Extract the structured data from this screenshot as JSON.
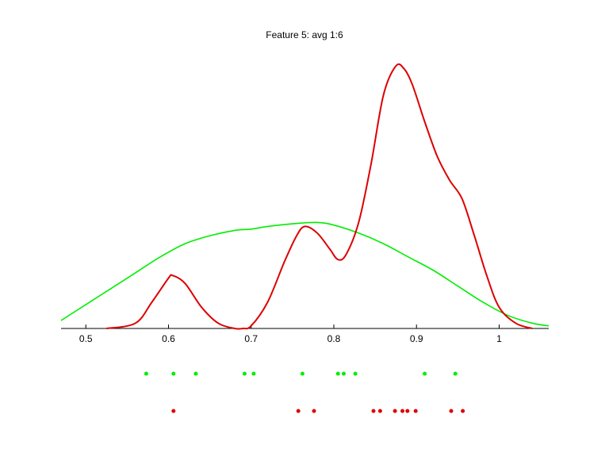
{
  "chart_data": {
    "type": "line",
    "title": "Feature 5: avg 1:6",
    "xlabel": "",
    "ylabel": "",
    "xlim": [
      0.47,
      1.06
    ],
    "ylim": [
      0,
      1
    ],
    "grid": false,
    "legend": "none",
    "xticks": [
      0.5,
      0.6,
      0.7,
      0.8,
      0.9,
      1.0
    ],
    "xtick_labels": [
      "0.5",
      "0.6",
      "0.7",
      "0.8",
      "0.9",
      "1"
    ],
    "series": [
      {
        "color": "#00ee00",
        "x": [
          0.47,
          0.5,
          0.53,
          0.56,
          0.59,
          0.62,
          0.65,
          0.68,
          0.7,
          0.72,
          0.75,
          0.78,
          0.8,
          0.83,
          0.86,
          0.89,
          0.92,
          0.95,
          0.98,
          1.01,
          1.04,
          1.06
        ],
        "y": [
          0.03,
          0.09,
          0.15,
          0.21,
          0.27,
          0.32,
          0.35,
          0.37,
          0.375,
          0.385,
          0.395,
          0.4,
          0.39,
          0.36,
          0.32,
          0.27,
          0.22,
          0.16,
          0.1,
          0.05,
          0.02,
          0.01
        ]
      },
      {
        "color": "#dd0000",
        "x": [
          0.525,
          0.56,
          0.58,
          0.6,
          0.605,
          0.62,
          0.64,
          0.66,
          0.68,
          0.69,
          0.7,
          0.72,
          0.74,
          0.755,
          0.765,
          0.78,
          0.795,
          0.805,
          0.815,
          0.83,
          0.845,
          0.86,
          0.875,
          0.885,
          0.895,
          0.91,
          0.925,
          0.94,
          0.955,
          0.97,
          0.985,
          1.0,
          1.02,
          1.04
        ],
        "y": [
          0.0,
          0.02,
          0.1,
          0.19,
          0.2,
          0.17,
          0.08,
          0.02,
          0.0,
          0.0,
          0.01,
          0.1,
          0.25,
          0.35,
          0.385,
          0.36,
          0.3,
          0.26,
          0.28,
          0.4,
          0.62,
          0.88,
          0.99,
          0.98,
          0.92,
          0.78,
          0.65,
          0.56,
          0.49,
          0.35,
          0.2,
          0.08,
          0.02,
          0.0
        ]
      }
    ],
    "points": [
      {
        "color": "#00ee00",
        "row": 1,
        "x": [
          0.573,
          0.606,
          0.633,
          0.692,
          0.703,
          0.762,
          0.805,
          0.812,
          0.826,
          0.91,
          0.947
        ]
      },
      {
        "color": "#dd0000",
        "row": 2,
        "x": [
          0.606,
          0.757,
          0.776,
          0.848,
          0.856,
          0.874,
          0.883,
          0.889,
          0.899,
          0.942,
          0.956
        ]
      }
    ]
  }
}
